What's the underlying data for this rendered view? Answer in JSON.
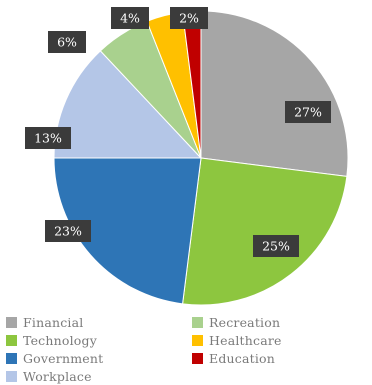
{
  "chart_data": {
    "type": "pie",
    "categories": [
      "Financial",
      "Technology",
      "Government",
      "Workplace",
      "Recreation",
      "Healthcare",
      "Education"
    ],
    "values": [
      27,
      25,
      23,
      13,
      6,
      4,
      2
    ],
    "data_labels": [
      "27%",
      "25%",
      "23%",
      "13%",
      "6%",
      "4%",
      "2%"
    ],
    "colors": [
      "#a6a6a6",
      "#8dc63f",
      "#2e75b6",
      "#b4c6e7",
      "#a9d18e",
      "#ffc000",
      "#c00000"
    ],
    "start_angle": 0,
    "direction": "clockwise",
    "legend_position": "bottom",
    "title": "",
    "xlabel": "",
    "ylabel": ""
  }
}
